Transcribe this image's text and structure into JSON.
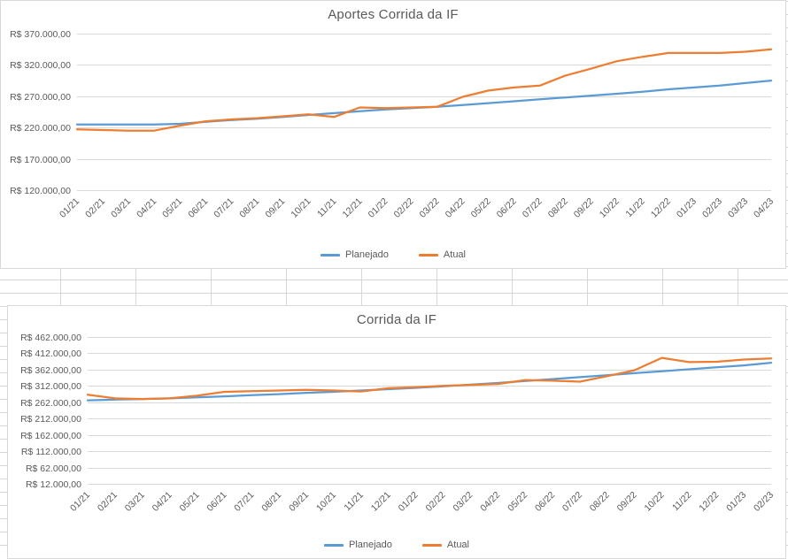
{
  "page": {
    "background": "#ffffff",
    "worksheet_gridline_color": "#d6d6d6"
  },
  "chart_data": [
    {
      "type": "line",
      "title": "Aportes Corrida da IF",
      "xlabel": "",
      "ylabel": "",
      "grid": true,
      "legend_position": "bottom",
      "ylim": [
        120000,
        370000
      ],
      "y_ticks": [
        {
          "value": 120000,
          "label": "R$ 120.000,00"
        },
        {
          "value": 170000,
          "label": "R$ 170.000,00"
        },
        {
          "value": 220000,
          "label": "R$ 220.000,00"
        },
        {
          "value": 270000,
          "label": "R$ 270.000,00"
        },
        {
          "value": 320000,
          "label": "R$ 320.000,00"
        },
        {
          "value": 370000,
          "label": "R$ 370.000,00"
        }
      ],
      "categories": [
        "01/21",
        "02/21",
        "03/21",
        "04/21",
        "05/21",
        "06/21",
        "07/21",
        "08/21",
        "09/21",
        "10/21",
        "11/21",
        "12/21",
        "01/22",
        "02/22",
        "03/22",
        "04/22",
        "05/22",
        "06/22",
        "07/22",
        "08/22",
        "09/22",
        "10/22",
        "11/22",
        "12/22",
        "01/23",
        "02/23",
        "03/23",
        "04/23"
      ],
      "series": [
        {
          "name": "Planejado",
          "color": "#5B9BD5",
          "values": [
            225000,
            225000,
            225000,
            225000,
            226000,
            229000,
            232000,
            234000,
            237000,
            240000,
            243000,
            246000,
            249000,
            251000,
            253000,
            256000,
            259000,
            262000,
            265000,
            268000,
            271000,
            274000,
            277000,
            281000,
            284000,
            287000,
            291000,
            295000
          ]
        },
        {
          "name": "Atual",
          "color": "#ED7D31",
          "values": [
            217000,
            216000,
            215000,
            215000,
            223000,
            230000,
            233000,
            235000,
            238000,
            241000,
            237000,
            252000,
            251000,
            252000,
            253000,
            269000,
            279000,
            284000,
            287000,
            303000,
            314000,
            326000,
            333000,
            339000,
            339000,
            339000,
            341000,
            345000
          ]
        }
      ]
    },
    {
      "type": "line",
      "title": "Corrida da IF",
      "xlabel": "",
      "ylabel": "",
      "grid": true,
      "legend_position": "bottom",
      "ylim": [
        12000,
        462000
      ],
      "y_ticks": [
        {
          "value": 12000,
          "label": "R$ 12.000,00"
        },
        {
          "value": 62000,
          "label": "R$ 62.000,00"
        },
        {
          "value": 112000,
          "label": "R$ 112.000,00"
        },
        {
          "value": 162000,
          "label": "R$ 162.000,00"
        },
        {
          "value": 212000,
          "label": "R$ 212.000,00"
        },
        {
          "value": 262000,
          "label": "R$ 262.000,00"
        },
        {
          "value": 312000,
          "label": "R$ 312.000,00"
        },
        {
          "value": 362000,
          "label": "R$ 362.000,00"
        },
        {
          "value": 412000,
          "label": "R$ 412.000,00"
        },
        {
          "value": 462000,
          "label": "R$ 462.000,00"
        }
      ],
      "categories": [
        "01/21",
        "02/21",
        "03/21",
        "04/21",
        "05/21",
        "06/21",
        "07/21",
        "08/21",
        "09/21",
        "10/21",
        "11/21",
        "12/21",
        "01/22",
        "02/22",
        "03/22",
        "04/22",
        "05/22",
        "06/22",
        "07/22",
        "08/22",
        "09/22",
        "10/22",
        "11/22",
        "12/22",
        "01/23",
        "02/23"
      ],
      "series": [
        {
          "name": "Planejado",
          "color": "#5B9BD5",
          "values": [
            268000,
            270000,
            272000,
            274000,
            277000,
            280000,
            284000,
            287000,
            291000,
            294000,
            298000,
            302000,
            306000,
            311000,
            316000,
            321000,
            327000,
            333000,
            339000,
            345000,
            351000,
            357000,
            363000,
            369000,
            375000,
            383000
          ]
        },
        {
          "name": "Atual",
          "color": "#ED7D31",
          "values": [
            285000,
            274000,
            272000,
            274000,
            282000,
            294000,
            296000,
            298000,
            300000,
            298000,
            295000,
            305000,
            308000,
            312000,
            315000,
            318000,
            330000,
            328000,
            325000,
            342000,
            360000,
            398000,
            385000,
            386000,
            393000,
            396000
          ]
        }
      ]
    }
  ]
}
